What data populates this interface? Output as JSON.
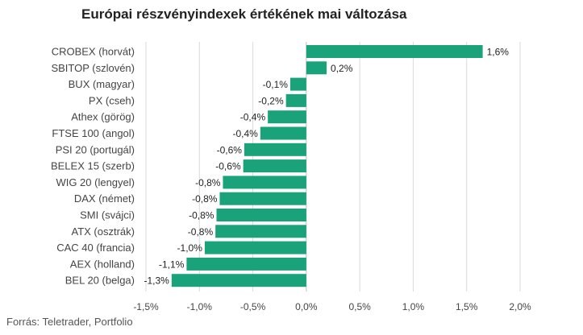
{
  "title": "Európai részvényindexek értékének mai változása",
  "source": "Forrás: Teletrader, Portfolio",
  "colors": {
    "bar": "#1aa37a",
    "grid": "#d9d9d9",
    "zero_line": "#bfbfbf"
  },
  "chart_data": {
    "type": "bar",
    "orientation": "horizontal",
    "title": "Európai részvényindexek értékének mai változása",
    "xlabel": "",
    "ylabel": "",
    "xlim": [
      -1.5,
      2.0
    ],
    "grid": true,
    "categories": [
      "CROBEX (horvát)",
      "SBITOP (szlovén)",
      "BUX (magyar)",
      "PX (cseh)",
      "Athex (görög)",
      "FTSE 100 (angol)",
      "PSI 20 (portugál)",
      "BELEX 15 (szerb)",
      "WIG 20 (lengyel)",
      "DAX (német)",
      "SMI (svájci)",
      "ATX (osztrák)",
      "CAC 40 (francia)",
      "AEX (holland)",
      "BEL 20 (belga)"
    ],
    "values": [
      1.65,
      0.19,
      -0.15,
      -0.19,
      -0.36,
      -0.43,
      -0.58,
      -0.59,
      -0.78,
      -0.81,
      -0.84,
      -0.85,
      -0.95,
      -1.12,
      -1.26
    ],
    "value_labels": [
      "1,6%",
      "0,2%",
      "-0,1%",
      "-0,2%",
      "-0,4%",
      "-0,4%",
      "-0,6%",
      "-0,6%",
      "-0,8%",
      "-0,8%",
      "-0,8%",
      "-0,8%",
      "-1,0%",
      "-1,1%",
      "-1,3%"
    ],
    "ticks": [
      -1.5,
      -1.0,
      -0.5,
      0.0,
      0.5,
      1.0,
      1.5,
      2.0
    ],
    "tick_labels": [
      "-1,5%",
      "-1,0%",
      "-0,5%",
      "0,0%",
      "0,5%",
      "1,0%",
      "1,5%",
      "2,0%"
    ]
  }
}
